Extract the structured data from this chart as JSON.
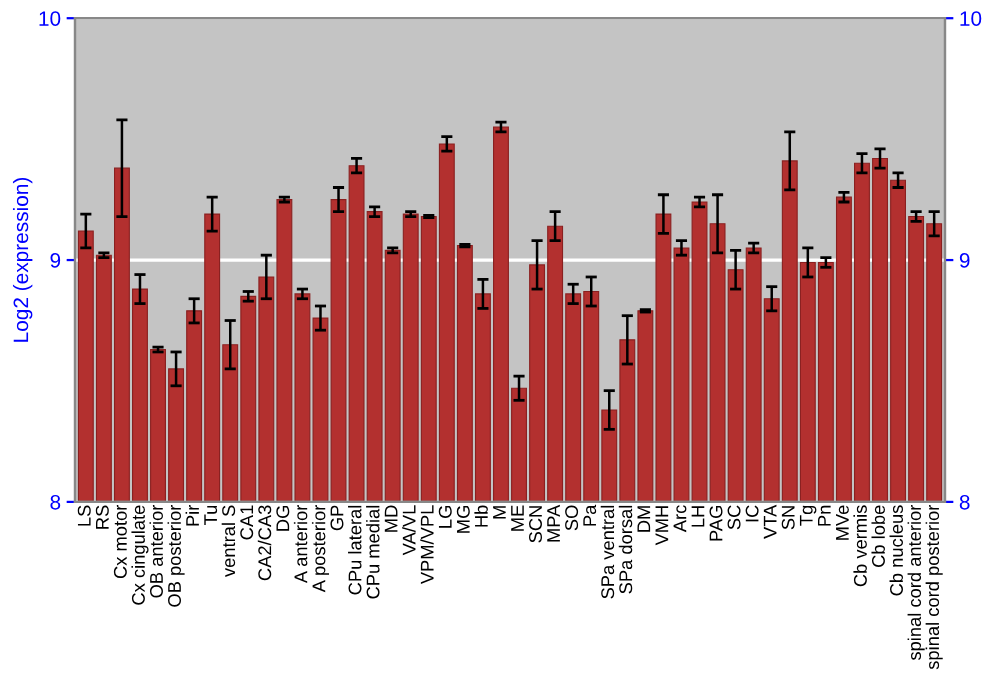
{
  "chart_data": {
    "type": "bar",
    "ylabel": "Log2 (expression)",
    "categories": [
      "LS",
      "RS",
      "Cx motor",
      "Cx cingulate",
      "OB anterior",
      "OB posterior",
      "Pir",
      "Tu",
      "ventral S",
      "CA1",
      "CA2/CA3",
      "DG",
      "A anterior",
      "A posterior",
      "GP",
      "CPu lateral",
      "CPu medial",
      "MD",
      "VA/VL",
      "VPM/VPL",
      "LG",
      "MG",
      "Hb",
      "M",
      "ME",
      "SCN",
      "MPA",
      "SO",
      "Pa",
      "SPa ventral",
      "SPa dorsal",
      "DM",
      "VMH",
      "Arc",
      "LH",
      "PAG",
      "SC",
      "IC",
      "VTA",
      "SN",
      "Tg",
      "Pn",
      "MVe",
      "Cb vermis",
      "Cb lobe",
      "Cb nucleus",
      "spinal cord anterior",
      "spinal cord posterior"
    ],
    "values": [
      9.12,
      9.02,
      9.38,
      8.88,
      8.63,
      8.55,
      8.79,
      9.19,
      8.65,
      8.85,
      8.93,
      9.25,
      8.86,
      8.76,
      9.25,
      9.39,
      9.2,
      9.04,
      9.19,
      9.18,
      9.48,
      9.06,
      8.86,
      9.55,
      8.47,
      8.98,
      9.14,
      8.86,
      8.87,
      8.38,
      8.67,
      8.79,
      9.19,
      9.05,
      9.24,
      9.15,
      8.96,
      9.05,
      8.84,
      9.41,
      8.99,
      8.99,
      9.26,
      9.4,
      9.42,
      9.33,
      9.18,
      9.15
    ],
    "errors": [
      0.07,
      0.01,
      0.2,
      0.06,
      0.01,
      0.07,
      0.05,
      0.07,
      0.1,
      0.02,
      0.09,
      0.01,
      0.02,
      0.05,
      0.05,
      0.03,
      0.02,
      0.01,
      0.01,
      0.005,
      0.03,
      0.005,
      0.06,
      0.02,
      0.05,
      0.1,
      0.06,
      0.04,
      0.06,
      0.08,
      0.1,
      0.005,
      0.08,
      0.03,
      0.02,
      0.12,
      0.08,
      0.02,
      0.05,
      0.12,
      0.06,
      0.02,
      0.02,
      0.04,
      0.04,
      0.03,
      0.02,
      0.05
    ],
    "color": "#b3302f",
    "ylim": [
      8,
      10
    ],
    "yticks": [
      8,
      9,
      10
    ],
    "y2lim": [
      8,
      10
    ],
    "y2ticks": [
      8,
      9,
      10
    ],
    "grid": "y"
  }
}
